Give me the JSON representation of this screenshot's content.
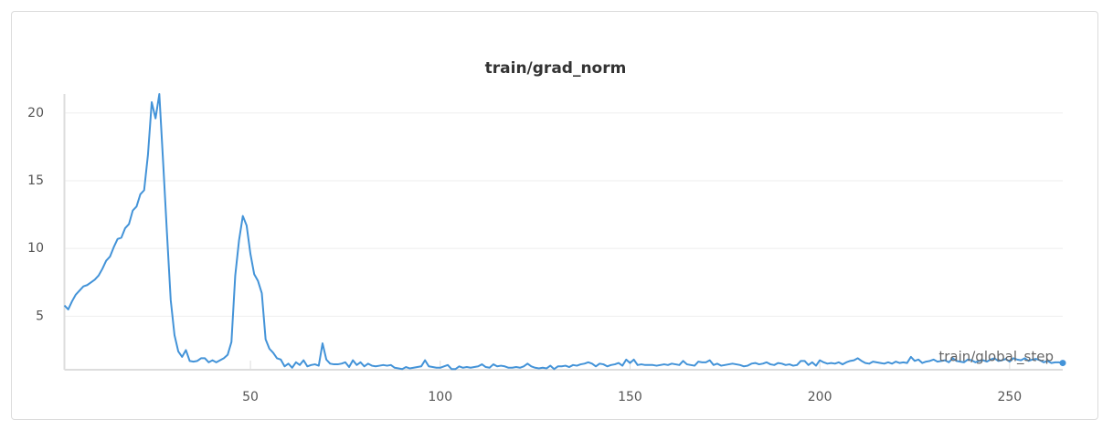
{
  "chart_data": {
    "type": "line",
    "title": "train/grad_norm",
    "x_label": "train/global_step",
    "xlim": [
      1,
      264
    ],
    "xticks": [
      50,
      100,
      150,
      200,
      250
    ],
    "ylim": [
      1.05,
      21.4
    ],
    "yticks": [
      5,
      10,
      15,
      20
    ],
    "grid": true,
    "x": [
      1,
      2,
      3,
      4,
      5,
      6,
      7,
      8,
      9,
      10,
      11,
      12,
      13,
      14,
      15,
      16,
      17,
      18,
      19,
      20,
      21,
      22,
      23,
      24,
      25,
      26,
      27,
      28,
      29,
      30,
      31,
      32,
      33,
      34,
      35,
      36,
      37,
      38,
      39,
      40,
      41,
      42,
      43,
      44,
      45,
      46,
      47,
      48,
      49,
      50,
      51,
      52,
      53,
      54,
      55,
      56,
      57,
      58,
      59,
      60,
      61,
      62,
      63,
      64,
      65,
      66,
      67,
      68,
      69,
      70,
      71,
      72,
      73,
      74,
      75,
      76,
      77,
      78,
      79,
      80,
      81,
      82,
      83,
      84,
      85,
      86,
      87,
      88,
      89,
      90,
      91,
      92,
      93,
      94,
      95,
      96,
      97,
      98,
      99,
      100,
      101,
      102,
      103,
      104,
      105,
      106,
      107,
      108,
      109,
      110,
      111,
      112,
      113,
      114,
      115,
      116,
      117,
      118,
      119,
      120,
      121,
      122,
      123,
      124,
      125,
      126,
      127,
      128,
      129,
      130,
      131,
      132,
      133,
      134,
      135,
      136,
      137,
      138,
      139,
      140,
      141,
      142,
      143,
      144,
      145,
      146,
      147,
      148,
      149,
      150,
      151,
      152,
      153,
      154,
      155,
      156,
      157,
      158,
      159,
      160,
      161,
      162,
      163,
      164,
      165,
      166,
      167,
      168,
      169,
      170,
      171,
      172,
      173,
      174,
      175,
      176,
      177,
      178,
      179,
      180,
      181,
      182,
      183,
      184,
      185,
      186,
      187,
      188,
      189,
      190,
      191,
      192,
      193,
      194,
      195,
      196,
      197,
      198,
      199,
      200,
      201,
      202,
      203,
      204,
      205,
      206,
      207,
      208,
      209,
      210,
      211,
      212,
      213,
      214,
      215,
      216,
      217,
      218,
      219,
      220,
      221,
      222,
      223,
      224,
      225,
      226,
      227,
      228,
      229,
      230,
      231,
      232,
      233,
      234,
      235,
      236,
      237,
      238,
      239,
      240,
      241,
      242,
      243,
      244,
      245,
      246,
      247,
      248,
      249,
      250,
      251,
      252,
      253,
      254,
      255,
      256,
      257,
      258,
      259,
      260,
      261,
      262,
      263,
      264
    ],
    "series": [
      {
        "color": "#4393d8",
        "values": [
          5.8,
          5.5,
          6.1,
          6.6,
          6.9,
          7.2,
          7.3,
          7.5,
          7.7,
          8.0,
          8.5,
          9.1,
          9.4,
          10.1,
          10.7,
          10.8,
          11.5,
          11.8,
          12.8,
          13.1,
          14.0,
          14.3,
          16.9,
          20.8,
          19.6,
          21.4,
          16.4,
          11.2,
          6.2,
          3.6,
          2.4,
          2.0,
          2.5,
          1.7,
          1.65,
          1.7,
          1.9,
          1.9,
          1.6,
          1.75,
          1.6,
          1.75,
          1.9,
          2.15,
          3.1,
          8.0,
          10.6,
          12.4,
          11.7,
          9.6,
          8.1,
          7.6,
          6.7,
          3.3,
          2.6,
          2.3,
          1.9,
          1.8,
          1.3,
          1.5,
          1.2,
          1.6,
          1.4,
          1.75,
          1.3,
          1.4,
          1.45,
          1.35,
          3.0,
          1.8,
          1.5,
          1.45,
          1.45,
          1.5,
          1.6,
          1.25,
          1.75,
          1.4,
          1.6,
          1.3,
          1.5,
          1.35,
          1.3,
          1.35,
          1.4,
          1.35,
          1.4,
          1.2,
          1.15,
          1.1,
          1.25,
          1.15,
          1.2,
          1.25,
          1.3,
          1.75,
          1.3,
          1.25,
          1.2,
          1.2,
          1.3,
          1.4,
          1.1,
          1.1,
          1.3,
          1.2,
          1.25,
          1.2,
          1.25,
          1.3,
          1.45,
          1.25,
          1.2,
          1.45,
          1.3,
          1.35,
          1.3,
          1.2,
          1.2,
          1.25,
          1.2,
          1.3,
          1.5,
          1.3,
          1.2,
          1.15,
          1.2,
          1.15,
          1.35,
          1.1,
          1.3,
          1.3,
          1.35,
          1.25,
          1.4,
          1.35,
          1.45,
          1.5,
          1.6,
          1.5,
          1.3,
          1.5,
          1.45,
          1.3,
          1.4,
          1.45,
          1.55,
          1.35,
          1.8,
          1.55,
          1.8,
          1.4,
          1.45,
          1.4,
          1.4,
          1.4,
          1.35,
          1.4,
          1.45,
          1.4,
          1.5,
          1.45,
          1.4,
          1.7,
          1.45,
          1.4,
          1.35,
          1.65,
          1.6,
          1.6,
          1.75,
          1.4,
          1.5,
          1.35,
          1.4,
          1.45,
          1.5,
          1.45,
          1.4,
          1.3,
          1.35,
          1.5,
          1.55,
          1.45,
          1.5,
          1.6,
          1.45,
          1.4,
          1.55,
          1.5,
          1.4,
          1.45,
          1.35,
          1.4,
          1.7,
          1.7,
          1.4,
          1.6,
          1.35,
          1.75,
          1.6,
          1.5,
          1.55,
          1.5,
          1.6,
          1.45,
          1.6,
          1.7,
          1.75,
          1.9,
          1.7,
          1.55,
          1.5,
          1.65,
          1.6,
          1.55,
          1.5,
          1.6,
          1.5,
          1.65,
          1.55,
          1.6,
          1.55,
          2.0,
          1.7,
          1.8,
          1.55,
          1.65,
          1.7,
          1.8,
          1.65,
          1.7,
          1.75,
          1.6,
          1.9,
          1.7,
          1.65,
          1.6,
          1.8,
          1.75,
          1.6,
          1.7,
          1.75,
          1.65,
          1.8,
          1.9,
          1.7,
          1.75,
          1.85,
          1.65,
          1.9,
          1.8,
          1.75,
          1.9,
          1.7,
          1.8,
          1.85,
          1.75,
          1.6,
          1.7,
          1.55,
          1.6,
          1.6,
          1.55
        ]
      }
    ]
  }
}
